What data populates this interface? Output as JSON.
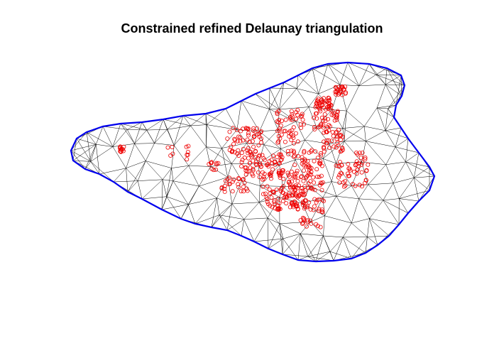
{
  "title": "Constrained refined Delaunay triangulation",
  "colors": {
    "boundary": "#0000ee",
    "edges": "#000000",
    "points": "#ee0000",
    "background": "#ffffff"
  }
}
